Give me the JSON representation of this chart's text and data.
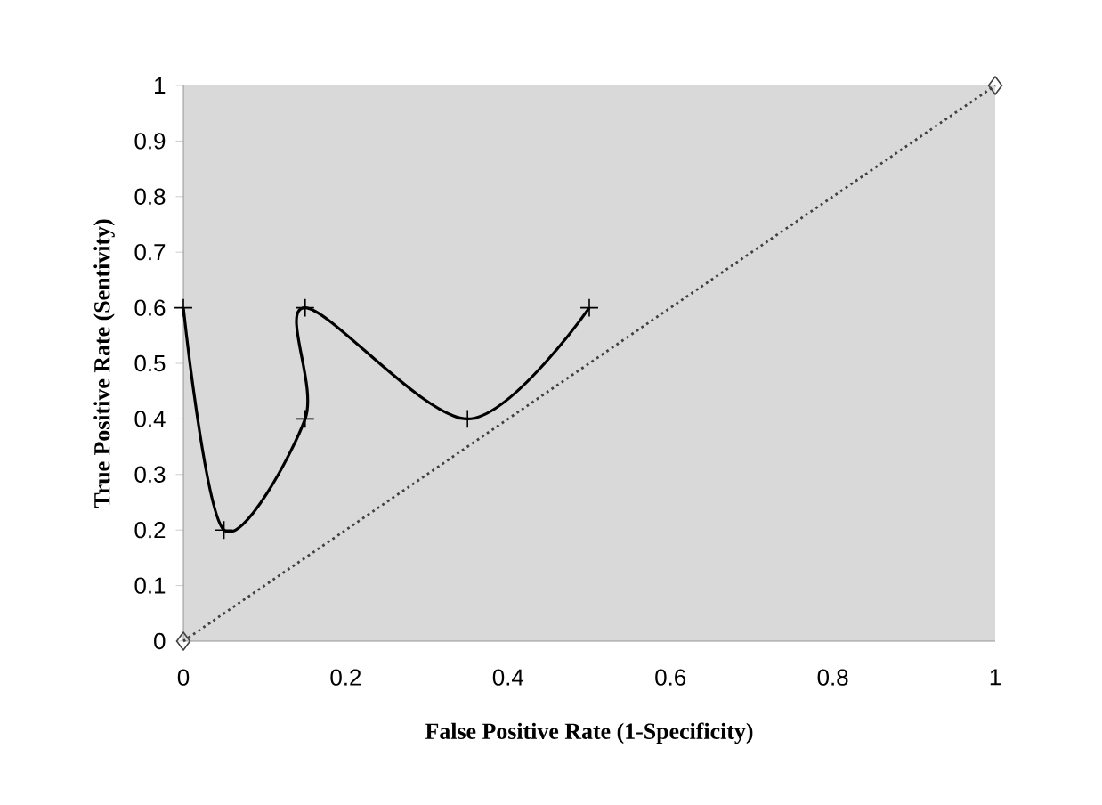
{
  "chart_data": {
    "type": "line",
    "xlabel": "False Positive Rate (1-Specificity)",
    "ylabel": "True Positive Rate  (Sentivity)",
    "xlim": [
      0,
      1
    ],
    "ylim": [
      0,
      1
    ],
    "xticks": [
      0,
      0.2,
      0.4,
      0.6,
      0.8,
      1
    ],
    "yticks": [
      0,
      0.1,
      0.2,
      0.3,
      0.4,
      0.5,
      0.6,
      0.7,
      0.8,
      0.9,
      1
    ],
    "grid": false,
    "series": [
      {
        "color": "#000000",
        "marker": "cross",
        "line_style": "solid",
        "x": [
          0,
          0.05,
          0.15,
          0.15,
          0.35,
          0.5
        ],
        "values": [
          0.6,
          0.2,
          0.4,
          0.6,
          0.4,
          0.6
        ]
      },
      {
        "color": "#404040",
        "marker": "diamond",
        "line_style": "dotted",
        "x": [
          0,
          1
        ],
        "values": [
          0,
          1
        ]
      }
    ]
  }
}
